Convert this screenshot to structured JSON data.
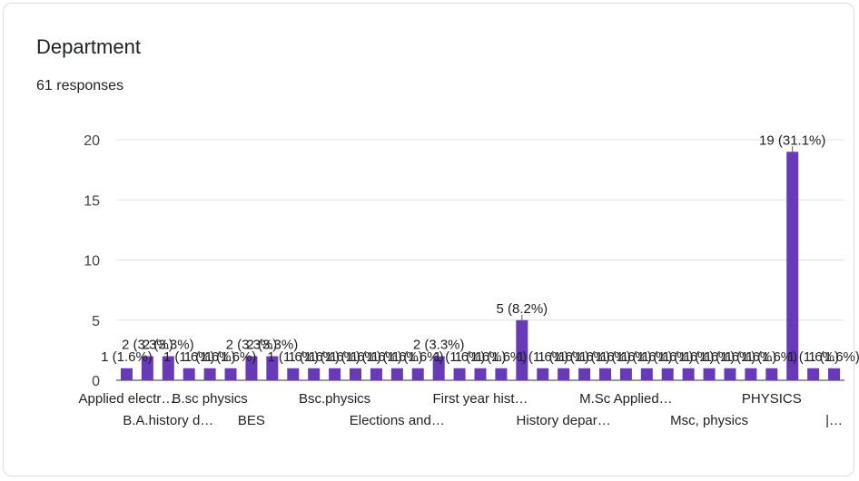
{
  "card": {
    "title": "Department",
    "responses": "61 responses"
  },
  "chart_data": {
    "type": "bar",
    "title": "Department",
    "subtitle": "61 responses",
    "xlabel": "",
    "ylabel": "",
    "ylim": [
      0,
      20
    ],
    "yticks": [
      0,
      5,
      10,
      15,
      20
    ],
    "grid": true,
    "legend": "none",
    "bar_color": "#673ab7",
    "values": [
      1,
      2,
      2,
      1,
      1,
      1,
      2,
      2,
      1,
      1,
      1,
      1,
      1,
      1,
      1,
      2,
      1,
      1,
      1,
      5,
      1,
      1,
      1,
      1,
      1,
      1,
      1,
      1,
      1,
      1,
      1,
      1,
      19,
      1,
      1
    ],
    "data_labels": [
      "1 (1.6%)",
      "2 (3.3%)",
      "2 (3.3%)",
      "1 (1.6%)",
      "1 (1.6%)",
      "1 (1.6%)",
      "2 (3.3%)",
      "2 (3.3%)",
      "1 (1.6%)",
      "1 (1.6%)",
      "1 (1.6%)",
      "1 (1.6%)",
      "1 (1.6%)",
      "1 (1.6%)",
      "1 (1.6%)",
      "2 (3.3%)",
      "1 (1.6%)",
      "1 (1.6%)",
      "1 (1.6%)",
      "5 (8.2%)",
      "1 (1.6%)",
      "1 (1.6%)",
      "1 (1.6%)",
      "1 (1.6%)",
      "1 (1.6%)",
      "1 (1.6%)",
      "1 (1.6%)",
      "1 (1.6%)",
      "1 (1.6%)",
      "1 (1.6%)",
      "1 (1.6%)",
      "1 (1.6%)",
      "19 (31.1%)",
      "1 (1.6%)",
      "1 (1.6%)"
    ],
    "category_labels": [
      {
        "index": 0,
        "text": "Applied electr…",
        "row": 1
      },
      {
        "index": 2,
        "text": "B.A.history d…",
        "row": 2
      },
      {
        "index": 4,
        "text": "B.sc physics",
        "row": 1
      },
      {
        "index": 6,
        "text": "BES",
        "row": 2
      },
      {
        "index": 10,
        "text": "Bsc.physics",
        "row": 1
      },
      {
        "index": 13,
        "text": "Elections and…",
        "row": 2
      },
      {
        "index": 17,
        "text": "First year hist…",
        "row": 1
      },
      {
        "index": 21,
        "text": "History depar…",
        "row": 2
      },
      {
        "index": 24,
        "text": "M.Sc Applied…",
        "row": 1
      },
      {
        "index": 28,
        "text": "Msc, physics",
        "row": 2
      },
      {
        "index": 31,
        "text": "PHYSICS",
        "row": 1
      },
      {
        "index": 34,
        "text": "|…",
        "row": 2
      }
    ]
  }
}
